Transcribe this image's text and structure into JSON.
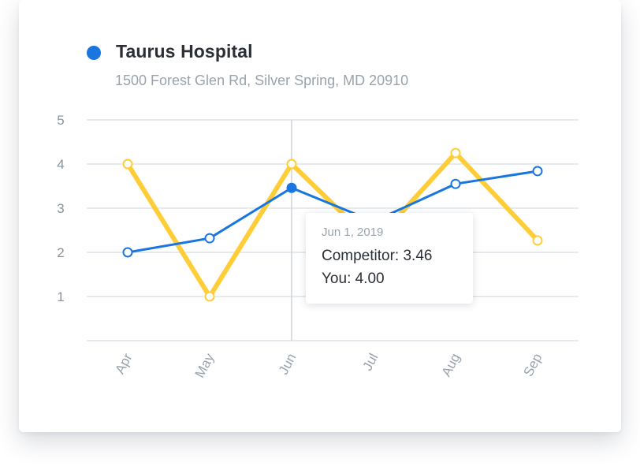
{
  "colors": {
    "competitor": "#1976e0",
    "you": "#ffcd38",
    "grid": "#dfe3e8",
    "crosshair": "#d0d4d9"
  },
  "header": {
    "title": "Taurus Hospital",
    "address": "1500 Forest Glen Rd, Silver Spring, MD 20910"
  },
  "chart_data": {
    "type": "line",
    "categories": [
      "Apr",
      "May",
      "Jun",
      "Jul",
      "Aug",
      "Sep"
    ],
    "series": [
      {
        "name": "Competitor",
        "color": "#1976e0",
        "values": [
          2.0,
          2.32,
          3.46,
          2.7,
          3.55,
          3.84
        ]
      },
      {
        "name": "You",
        "color": "#ffcd38",
        "values": [
          4.0,
          1.0,
          4.0,
          2.2,
          4.25,
          2.27
        ]
      }
    ],
    "yticks": [
      1,
      2,
      3,
      4,
      5
    ],
    "ylim": [
      0,
      5
    ],
    "grid": true,
    "highlight_index": 2,
    "tooltip": {
      "date": "Jun 1, 2019",
      "lines": [
        "Competitor: 3.46",
        "You: 4.00"
      ]
    }
  }
}
